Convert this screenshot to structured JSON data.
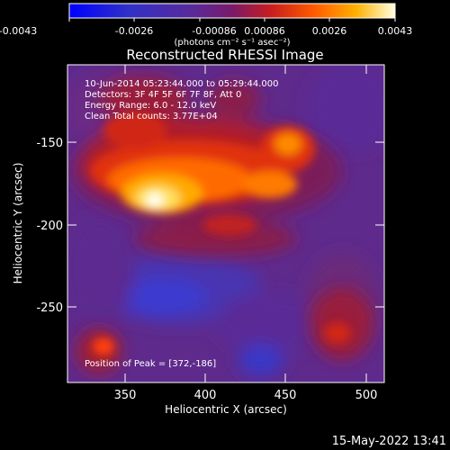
{
  "colorbar": {
    "ticks": [
      "-0.0043",
      "-0.0026",
      "-0.00086",
      "0.00086",
      "0.0026",
      "0.0043"
    ],
    "unit_label": "(photons cm⁻² s⁻¹ asec⁻²)"
  },
  "title": "Reconstructed RHESSI Image",
  "info": {
    "line1": "10-Jun-2014 05:23:44.000 to 05:29:44.000",
    "line2": "Detectors: 3F 4F 5F 6F 7F 8F, Att 0",
    "line3": "Energy Range: 6.0 - 12.0 keV",
    "line4": "Clean     Total counts: 3.77E+04"
  },
  "peak_label": "Position of Peak = [372,-186]",
  "axes": {
    "xlabel": "Heliocentric X (arcsec)",
    "ylabel": "Heliocentric Y (arcsec)",
    "xticks": [
      "350",
      "400",
      "450",
      "500"
    ],
    "yticks": [
      "-150",
      "-200",
      "-250"
    ]
  },
  "footer_timestamp": "15-May-2022 13:41"
}
